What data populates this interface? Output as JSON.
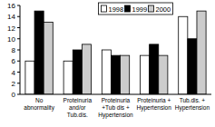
{
  "chart_data": {
    "type": "bar",
    "categories": [
      "No\nabnormality",
      "Proteinuria\nand/or\nTub.dis.",
      "Proteinuria\n+Tub dis +\nHypertension",
      "Proteinuria +\nHypertension",
      "Tub.dis. +\nHypertension"
    ],
    "series": [
      {
        "name": "1998",
        "color": "#ffffff",
        "values": [
          6,
          6,
          8,
          7,
          14
        ]
      },
      {
        "name": "1999",
        "color": "#000000",
        "values": [
          15,
          8,
          7,
          9,
          10
        ]
      },
      {
        "name": "2000",
        "color": "#cccccc",
        "values": [
          13,
          9,
          7,
          7,
          15
        ]
      }
    ],
    "ylim": [
      0,
      16
    ],
    "yticks": [
      0,
      2,
      4,
      6,
      8,
      10,
      12,
      14,
      16
    ],
    "grid": false,
    "legend": "top"
  }
}
